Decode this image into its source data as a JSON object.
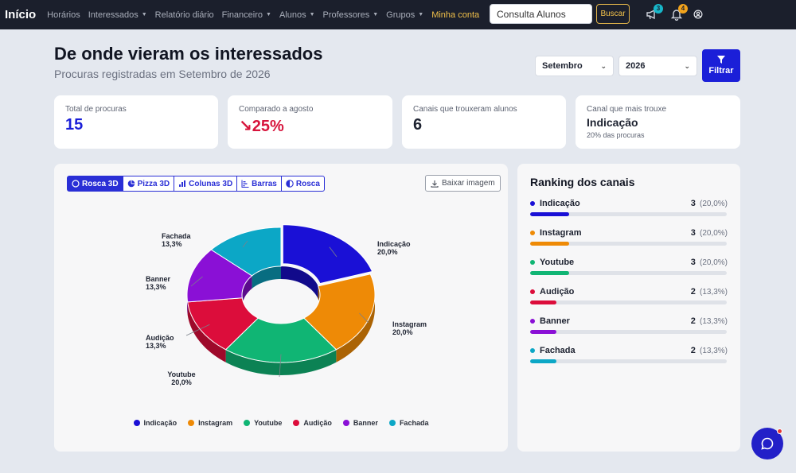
{
  "navbar": {
    "brand": "Início",
    "items": [
      {
        "label": "Horários",
        "dropdown": false
      },
      {
        "label": "Interessados",
        "dropdown": true
      },
      {
        "label": "Relatório diário",
        "dropdown": false
      },
      {
        "label": "Financeiro",
        "dropdown": true
      },
      {
        "label": "Alunos",
        "dropdown": true
      },
      {
        "label": "Professores",
        "dropdown": true
      },
      {
        "label": "Grupos",
        "dropdown": true
      }
    ],
    "account_label": "Minha conta",
    "search_value": "Consulta Alunos",
    "search_button": "Buscar",
    "announcements_badge": "3",
    "notifications_badge": "4",
    "icons": [
      "megaphone-icon",
      "bell-icon",
      "user-circle-icon"
    ]
  },
  "header": {
    "title": "De onde vieram os interessados",
    "subtitle": "Procuras registradas em Setembro de 2026",
    "month_select": "Setembro",
    "year_select": "2026",
    "filter_button": "Filtrar"
  },
  "kpis": [
    {
      "label": "Total de procuras",
      "value": "15",
      "style": "blue"
    },
    {
      "label": "Comparado a agosto",
      "value": "↘25%",
      "style": "red"
    },
    {
      "label": "Canais que trouxeram alunos",
      "value": "6",
      "style": "dark"
    },
    {
      "label": "Canal que mais trouxe",
      "value": "Indicação",
      "sub": "20% das procuras",
      "style": "dark small"
    }
  ],
  "chart_tabs": [
    {
      "label": "Rosca 3D",
      "icon": "donut-icon",
      "active": true
    },
    {
      "label": "Pizza 3D",
      "icon": "pie-icon",
      "active": false
    },
    {
      "label": "Colunas 3D",
      "icon": "columns-icon",
      "active": false
    },
    {
      "label": "Barras",
      "icon": "bars-icon",
      "active": false
    },
    {
      "label": "Rosca",
      "icon": "half-circle-icon",
      "active": false
    }
  ],
  "download_label": "Baixar imagem",
  "chart_data": {
    "type": "pie",
    "style": "donut-3d",
    "categories": [
      "Indicação",
      "Instagram",
      "Youtube",
      "Audição",
      "Banner",
      "Fachada"
    ],
    "values": [
      3,
      3,
      3,
      2,
      2,
      2
    ],
    "labels": [
      "20,0%",
      "20,0%",
      "20,0%",
      "13,3%",
      "13,3%",
      "13,3%"
    ],
    "colors": [
      "#1a10d6",
      "#ee8a06",
      "#10b574",
      "#dc0d3b",
      "#8a10d6",
      "#0ca7c6"
    ],
    "legend_position": "bottom"
  },
  "ranking": {
    "title": "Ranking dos canais",
    "max": 3,
    "items": [
      {
        "name": "Indicação",
        "count": "3",
        "pct": "(20,0%)",
        "value": 3,
        "color": "#1a10d6"
      },
      {
        "name": "Instagram",
        "count": "3",
        "pct": "(20,0%)",
        "value": 3,
        "color": "#ee8a06"
      },
      {
        "name": "Youtube",
        "count": "3",
        "pct": "(20,0%)",
        "value": 3,
        "color": "#10b574"
      },
      {
        "name": "Audição",
        "count": "2",
        "pct": "(13,3%)",
        "value": 2,
        "color": "#dc0d3b"
      },
      {
        "name": "Banner",
        "count": "2",
        "pct": "(13,3%)",
        "value": 2,
        "color": "#8a10d6"
      },
      {
        "name": "Fachada",
        "count": "2",
        "pct": "(13,3%)",
        "value": 2,
        "color": "#0ca7c6"
      }
    ]
  },
  "chat_icon": "chat-icon"
}
